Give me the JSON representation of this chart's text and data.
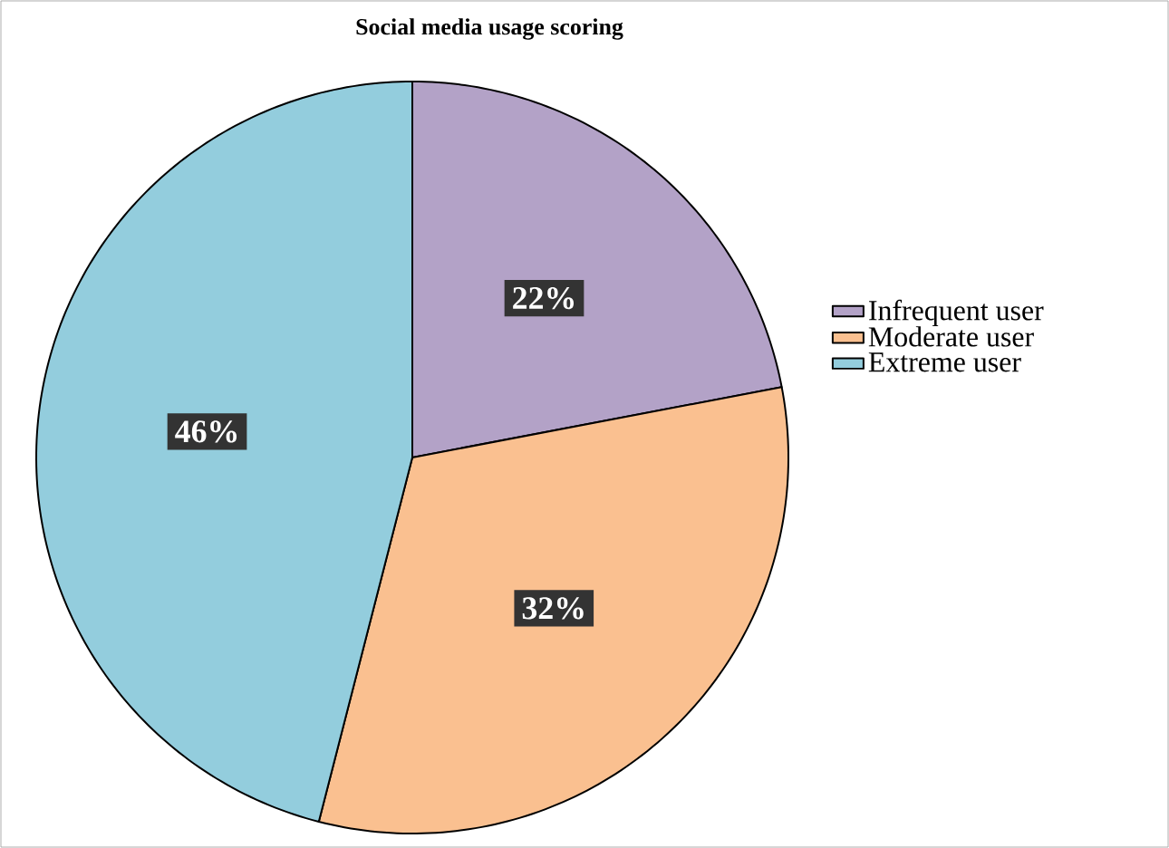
{
  "chart_data": {
    "type": "pie",
    "title": "Social media usage scoring",
    "categories": [
      "Infrequent user",
      "Moderate user",
      "Extreme user"
    ],
    "values": [
      22,
      32,
      46
    ],
    "value_labels": [
      "22%",
      "32%",
      "46%"
    ],
    "colors": [
      "#b3a2c7",
      "#fac090",
      "#93cddd"
    ],
    "legend": "right"
  }
}
